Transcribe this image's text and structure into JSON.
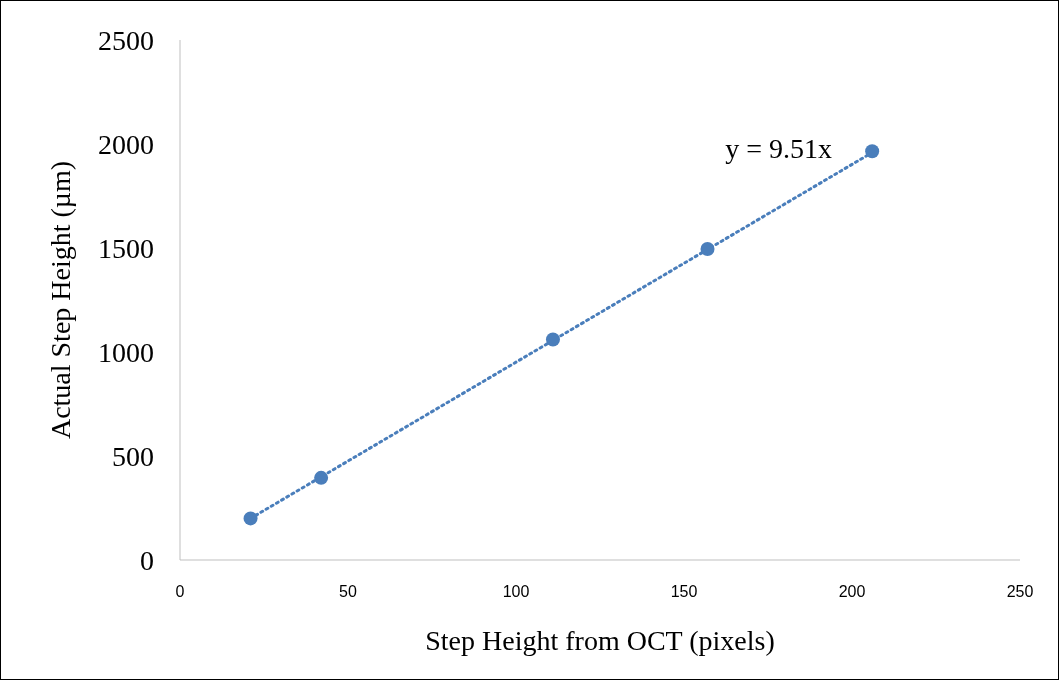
{
  "chart_data": {
    "type": "scatter",
    "xlabel": "Step Height from OCT (pixels)",
    "ylabel": "Actual Step Height (µm)",
    "xlim": [
      0,
      250
    ],
    "xticks": [
      0,
      50,
      100,
      150,
      200,
      250
    ],
    "ylim": [
      0,
      2500
    ],
    "yticks": [
      0,
      500,
      1000,
      1500,
      2000,
      2500
    ],
    "grid": false,
    "series": [
      {
        "color": "#4a7ebb",
        "marker": "circle",
        "x": [
          21,
          42,
          111,
          157,
          206
        ],
        "values": [
          200,
          395,
          1060,
          1495,
          1965
        ]
      },
      {
        "type": "line",
        "color": "#4a7ebb",
        "line_style": "dotted",
        "marker": "none",
        "x": [
          21,
          206
        ],
        "values": [
          200,
          1959
        ]
      }
    ],
    "annotations": [
      "y = 9.51x"
    ]
  }
}
